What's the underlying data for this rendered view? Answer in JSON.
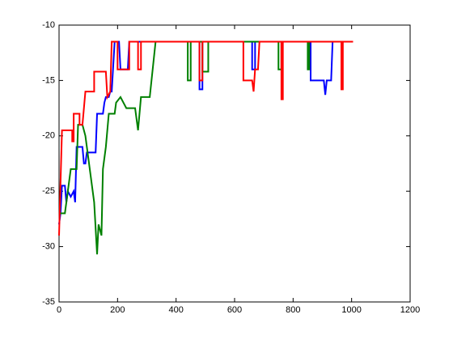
{
  "chart_data": {
    "type": "line",
    "xlim": [
      0,
      1200
    ],
    "xticks": [
      0,
      200,
      400,
      600,
      800,
      1000,
      1200
    ],
    "ylim": [
      -35,
      -10
    ],
    "yticks": [
      -35,
      -30,
      -25,
      -20,
      -15,
      -10
    ],
    "series": [
      {
        "color": "#0000ff",
        "x": [
          0,
          5,
          10,
          20,
          25,
          30,
          40,
          50,
          55,
          60,
          80,
          85,
          90,
          95,
          100,
          125,
          130,
          150,
          155,
          160,
          170,
          175,
          180,
          190,
          195,
          205,
          210,
          235,
          240,
          280,
          480,
          480,
          490,
          490,
          660,
          660,
          670,
          670,
          860,
          860,
          905,
          910,
          915,
          930,
          935,
          1000
        ],
        "values": [
          -28,
          -27,
          -24.5,
          -24.5,
          -26,
          -25,
          -25.5,
          -25,
          -26,
          -21,
          -21,
          -22.5,
          -22.5,
          -21.5,
          -21.5,
          -21.5,
          -18,
          -18,
          -17,
          -16.5,
          -16.5,
          -16,
          -16,
          -11.5,
          -11.5,
          -11.5,
          -14,
          -14,
          -11.5,
          -11.5,
          -11.5,
          -15.8,
          -15.8,
          -11.5,
          -11.5,
          -14,
          -14,
          -11.5,
          -11.5,
          -15,
          -15,
          -16.3,
          -15,
          -15,
          -11.5,
          -11.5
        ]
      },
      {
        "color": "#008000",
        "x": [
          0,
          20,
          30,
          40,
          60,
          65,
          80,
          90,
          100,
          110,
          120,
          130,
          135,
          145,
          150,
          160,
          170,
          190,
          195,
          210,
          230,
          260,
          270,
          280,
          310,
          330,
          440,
          440,
          450,
          450,
          490,
          490,
          510,
          510,
          750,
          750,
          760,
          760,
          850,
          850,
          855,
          855,
          960
        ],
        "values": [
          -27,
          -27,
          -25,
          -23,
          -23,
          -19,
          -19,
          -20,
          -22,
          -24,
          -26,
          -30.7,
          -28,
          -29,
          -23,
          -21,
          -18,
          -18,
          -17,
          -16.5,
          -17.5,
          -17.5,
          -19.5,
          -16.5,
          -16.5,
          -11.5,
          -11.5,
          -15,
          -15,
          -11.5,
          -11.5,
          -14.2,
          -14.2,
          -11.5,
          -11.5,
          -14,
          -14,
          -11.5,
          -11.5,
          -14,
          -14,
          -11.5,
          -11.5
        ]
      },
      {
        "color": "#ff0000",
        "x": [
          0,
          10,
          45,
          45,
          50,
          50,
          70,
          70,
          80,
          90,
          120,
          120,
          160,
          165,
          175,
          180,
          200,
          200,
          240,
          240,
          270,
          270,
          280,
          280,
          480,
          480,
          490,
          490,
          630,
          630,
          660,
          665,
          670,
          680,
          685,
          760,
          760,
          765,
          765,
          965,
          965,
          970,
          970,
          1005
        ],
        "values": [
          -29,
          -19.5,
          -19.5,
          -20.5,
          -20.5,
          -18,
          -18,
          -19,
          -19,
          -16,
          -16,
          -14.2,
          -14.2,
          -16.5,
          -16,
          -11.5,
          -11.5,
          -14,
          -14,
          -11.5,
          -11.5,
          -14,
          -14,
          -11.5,
          -11.5,
          -15,
          -15,
          -11.5,
          -11.5,
          -15,
          -15,
          -16,
          -14,
          -14,
          -11.5,
          -11.5,
          -16.7,
          -16.7,
          -11.5,
          -11.5,
          -15.8,
          -15.8,
          -11.5,
          -11.5
        ]
      }
    ]
  }
}
